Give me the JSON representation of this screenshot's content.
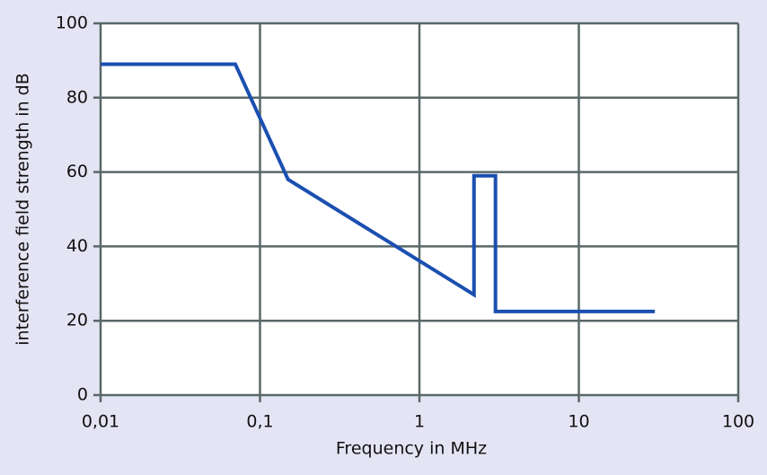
{
  "chart_data": {
    "type": "line",
    "xlabel": "Frequency in MHz",
    "ylabel": "interference field strength in dB",
    "x": [
      0.01,
      0.07,
      0.15,
      2.2,
      2.2,
      3,
      3,
      30
    ],
    "values": [
      89,
      89,
      58,
      27,
      59,
      59,
      22.5,
      22.5
    ],
    "color": "#1b4fb0",
    "xscale": "log",
    "xlim": [
      0.01,
      100
    ],
    "xticks": [
      {
        "value": 0.01,
        "label": "0,01"
      },
      {
        "value": 0.1,
        "label": "0,1"
      },
      1,
      10,
      100
    ],
    "ylim": [
      0,
      100
    ],
    "yticks": [
      0,
      20,
      40,
      60,
      80,
      100
    ],
    "grid": true
  }
}
